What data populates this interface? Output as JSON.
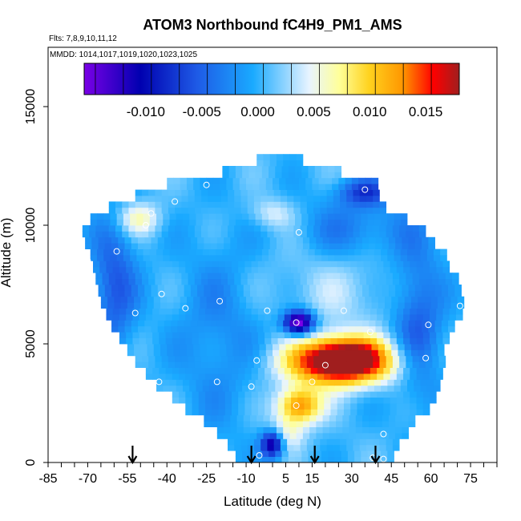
{
  "chart_data": {
    "type": "heatmap",
    "title": "ATOM3 Northbound fC4H9_PM1_AMS",
    "flights_label": "Flts: 7,8,9,10,11,12",
    "dates_label": "MMDD: 1014,1017,1019,1020,1023,1025",
    "xlabel": "Latitude (deg N)",
    "ylabel": "Altitude (m)",
    "xlim": [
      -85,
      85
    ],
    "ylim": [
      0,
      17500
    ],
    "xticks": [
      -85,
      -70,
      -55,
      -40,
      -25,
      -10,
      5,
      15,
      30,
      45,
      60,
      75
    ],
    "xtick_labels": [
      "-85",
      "-70",
      "-55",
      "-40",
      "-25",
      "-10",
      "5",
      "15",
      "30",
      "45",
      "60",
      "75"
    ],
    "yticks": [
      0,
      5000,
      10000,
      15000
    ],
    "ytick_labels": [
      "0",
      "5000",
      "10000",
      "15000"
    ],
    "colorbar": {
      "min": -0.0155,
      "max": 0.018,
      "ticks": [
        -0.01,
        -0.005,
        0.0,
        0.005,
        0.01,
        0.015
      ],
      "tick_labels": [
        "-0.010",
        "-0.005",
        "0.000",
        "0.005",
        "0.010",
        "0.015"
      ],
      "colors": [
        "#7a00e6",
        "#0000b0",
        "#1e5ae6",
        "#1aaaff",
        "#e8f4ff",
        "#ffff99",
        "#ffd21e",
        "#ff9600",
        "#ff0000",
        "#a01e1e"
      ],
      "stops": [
        0.0,
        0.15,
        0.3,
        0.45,
        0.6,
        0.68,
        0.76,
        0.85,
        0.93,
        1.0
      ]
    },
    "altitude_profile": [
      {
        "alt": 0,
        "lat_min": -14,
        "lat_max": 45
      },
      {
        "alt": 500,
        "lat_min": -17,
        "lat_max": 48
      },
      {
        "alt": 1000,
        "lat_min": -21,
        "lat_max": 51
      },
      {
        "alt": 1500,
        "lat_min": -26,
        "lat_max": 54
      },
      {
        "alt": 2000,
        "lat_min": -33,
        "lat_max": 59
      },
      {
        "alt": 2500,
        "lat_min": -38,
        "lat_max": 61
      },
      {
        "alt": 3000,
        "lat_min": -44,
        "lat_max": 62
      },
      {
        "alt": 3500,
        "lat_min": -48,
        "lat_max": 63
      },
      {
        "alt": 4000,
        "lat_min": -52,
        "lat_max": 64
      },
      {
        "alt": 4500,
        "lat_min": -55,
        "lat_max": 65
      },
      {
        "alt": 5000,
        "lat_min": -58,
        "lat_max": 66
      },
      {
        "alt": 5500,
        "lat_min": -61,
        "lat_max": 68
      },
      {
        "alt": 6000,
        "lat_min": -63,
        "lat_max": 70
      },
      {
        "alt": 6500,
        "lat_min": -65,
        "lat_max": 72
      },
      {
        "alt": 7000,
        "lat_min": -66,
        "lat_max": 71
      },
      {
        "alt": 7500,
        "lat_min": -67,
        "lat_max": 69
      },
      {
        "alt": 8000,
        "lat_min": -68,
        "lat_max": 67
      },
      {
        "alt": 8500,
        "lat_min": -69,
        "lat_max": 65
      },
      {
        "alt": 9000,
        "lat_min": -71,
        "lat_max": 61
      },
      {
        "alt": 9500,
        "lat_min": -72,
        "lat_max": 56
      },
      {
        "alt": 10000,
        "lat_min": -69,
        "lat_max": 50
      },
      {
        "alt": 10500,
        "lat_min": -62,
        "lat_max": 43
      },
      {
        "alt": 11000,
        "lat_min": -52,
        "lat_max": 40
      },
      {
        "alt": 11500,
        "lat_min": -40,
        "lat_max": 38
      },
      {
        "alt": 12000,
        "lat_min": -19,
        "lat_max": 24
      },
      {
        "alt": 12500,
        "lat_min": -6,
        "lat_max": 10
      }
    ],
    "features": [
      {
        "lat": 26,
        "alt": 4200,
        "sigma_lat": 14,
        "sigma_alt": 650,
        "value": 0.021
      },
      {
        "lat": 28,
        "alt": 4800,
        "sigma_lat": 10,
        "sigma_alt": 500,
        "value": 0.005
      },
      {
        "lat": 10,
        "alt": 5900,
        "sigma_lat": 4,
        "sigma_alt": 350,
        "value": -0.018
      },
      {
        "lat": 10,
        "alt": 2400,
        "sigma_lat": 6,
        "sigma_alt": 550,
        "value": 0.013
      },
      {
        "lat": 0,
        "alt": 800,
        "sigma_lat": 3,
        "sigma_alt": 400,
        "value": -0.014
      },
      {
        "lat": 5,
        "alt": 1200,
        "sigma_lat": 5,
        "sigma_alt": 500,
        "value": 0.005
      },
      {
        "lat": -51,
        "alt": 10300,
        "sigma_lat": 6,
        "sigma_alt": 500,
        "value": 0.006
      },
      {
        "lat": 0,
        "alt": 10500,
        "sigma_lat": 6,
        "sigma_alt": 450,
        "value": 0.004
      },
      {
        "lat": 35,
        "alt": 11400,
        "sigma_lat": 7,
        "sigma_alt": 400,
        "value": -0.007
      },
      {
        "lat": -60,
        "alt": 7500,
        "sigma_lat": 6,
        "sigma_alt": 2200,
        "value": -0.006
      },
      {
        "lat": 55,
        "alt": 6000,
        "sigma_lat": 7,
        "sigma_alt": 2500,
        "value": -0.006
      },
      {
        "lat": -20,
        "alt": 5500,
        "sigma_lat": 12,
        "sigma_alt": 3000,
        "value": -0.003
      },
      {
        "lat": 25,
        "alt": 7500,
        "sigma_lat": 20,
        "sigma_alt": 1800,
        "value": 0.0025
      },
      {
        "lat": 30,
        "alt": 9800,
        "sigma_lat": 15,
        "sigma_alt": 1000,
        "value": -0.0045
      }
    ],
    "sample_points": [
      {
        "lat": -25,
        "alt": 11700
      },
      {
        "lat": 35,
        "alt": 11500
      },
      {
        "lat": -37,
        "alt": 11000
      },
      {
        "lat": -70,
        "alt": 10600
      },
      {
        "lat": -46,
        "alt": 10500
      },
      {
        "lat": -48,
        "alt": 10000
      },
      {
        "lat": -81,
        "alt": 9800
      },
      {
        "lat": 10,
        "alt": 9700
      },
      {
        "lat": -59,
        "alt": 8900
      },
      {
        "lat": -70,
        "alt": 8500
      },
      {
        "lat": -42,
        "alt": 7100
      },
      {
        "lat": -20,
        "alt": 6800
      },
      {
        "lat": 71,
        "alt": 6600
      },
      {
        "lat": -33,
        "alt": 6500
      },
      {
        "lat": -2,
        "alt": 6400
      },
      {
        "lat": 27,
        "alt": 6400
      },
      {
        "lat": -52,
        "alt": 6300
      },
      {
        "lat": 9,
        "alt": 5900
      },
      {
        "lat": 59,
        "alt": 5800
      },
      {
        "lat": 37,
        "alt": 5500
      },
      {
        "lat": 68,
        "alt": 4800
      },
      {
        "lat": 58,
        "alt": 4400
      },
      {
        "lat": -6,
        "alt": 4300
      },
      {
        "lat": 20,
        "alt": 4100
      },
      {
        "lat": -21,
        "alt": 3400
      },
      {
        "lat": -43,
        "alt": 3400
      },
      {
        "lat": 15,
        "alt": 3400
      },
      {
        "lat": -8,
        "alt": 3200
      },
      {
        "lat": 9,
        "alt": 2400
      },
      {
        "lat": 42,
        "alt": 1200
      },
      {
        "lat": 55,
        "alt": 600
      },
      {
        "lat": -5,
        "alt": 300
      },
      {
        "lat": 38,
        "alt": 200
      },
      {
        "lat": 42,
        "alt": 150
      }
    ],
    "arrows": [
      -53,
      -8,
      16,
      39
    ]
  }
}
